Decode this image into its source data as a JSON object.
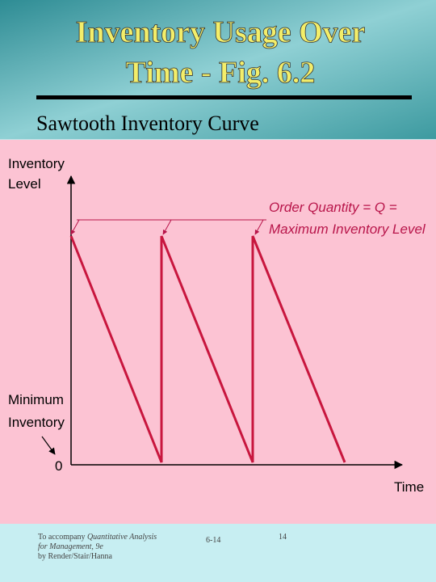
{
  "header": {
    "title_lines": [
      "Inventory Usage Over",
      "Time - Fig. 6.2"
    ],
    "subtitle": "Sawtooth Inventory Curve"
  },
  "diagram": {
    "y_axis_label_lines": [
      "Inventory",
      "Level"
    ],
    "x_axis_label": "Time",
    "origin_label": "0",
    "annotation_lines": [
      "Order Quantity = Q =",
      "Maximum Inventory Level"
    ],
    "minimum_label_lines": [
      "Minimum",
      "Inventory"
    ]
  },
  "footer": {
    "credit_prefix": "To accompany",
    "credit_book": "Quantitative Analysis",
    "credit_line2": "for Management, 9e",
    "credit_line3": "by Render/Stair/Hanna",
    "slide_code": "6-14",
    "page_number": "14"
  }
}
